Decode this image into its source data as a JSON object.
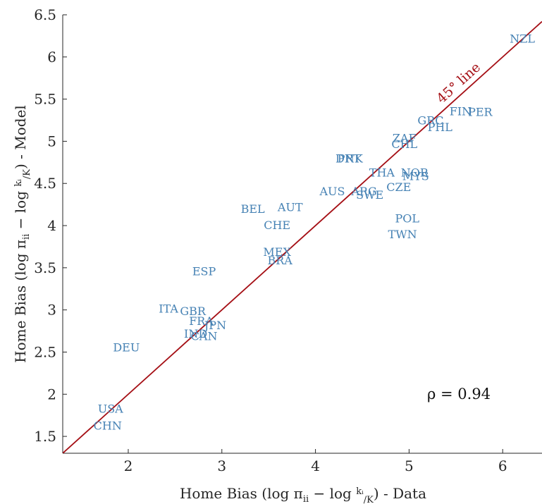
{
  "chart_data": {
    "type": "scatter",
    "title": "",
    "xlabel": "Home Bias (log πᵢᵢ − log kᵢ/K) - Data",
    "ylabel": "Home Bias (log πᵢᵢ − log kᵢ/K) - Model",
    "xlim": [
      1.3,
      6.42
    ],
    "ylim": [
      1.3,
      6.5
    ],
    "xticks": [
      "2",
      "3",
      "4",
      "5",
      "6"
    ],
    "yticks": [
      "1.5",
      "2",
      "2.5",
      "3",
      "3.5",
      "4",
      "4.5",
      "5",
      "5.5",
      "6",
      "6.5"
    ],
    "grid": false,
    "point_color": "#4682b4",
    "line_color": "#a50f15",
    "reference_line": {
      "label": "45° line",
      "slope": 1,
      "intercept": 0
    },
    "annotation": "ρ = 0.94",
    "points": [
      {
        "label": "NZL",
        "x": 6.21,
        "y": 6.22
      },
      {
        "label": "PER",
        "x": 5.76,
        "y": 5.35
      },
      {
        "label": "FIN",
        "x": 5.55,
        "y": 5.36
      },
      {
        "label": "GRC",
        "x": 5.23,
        "y": 5.25
      },
      {
        "label": "PHL",
        "x": 5.33,
        "y": 5.17
      },
      {
        "label": "ZAF",
        "x": 4.95,
        "y": 5.04
      },
      {
        "label": "CHL",
        "x": 4.95,
        "y": 4.97
      },
      {
        "label": "DNK",
        "x": 4.36,
        "y": 4.8
      },
      {
        "label": "PRT",
        "x": 4.36,
        "y": 4.8
      },
      {
        "label": "THA",
        "x": 4.71,
        "y": 4.63
      },
      {
        "label": "NOR",
        "x": 5.06,
        "y": 4.63
      },
      {
        "label": "MYS",
        "x": 5.07,
        "y": 4.59
      },
      {
        "label": "AUS",
        "x": 4.18,
        "y": 4.41
      },
      {
        "label": "ARG",
        "x": 4.52,
        "y": 4.41
      },
      {
        "label": "SWE",
        "x": 4.58,
        "y": 4.37
      },
      {
        "label": "CZE",
        "x": 4.89,
        "y": 4.46
      },
      {
        "label": "BEL",
        "x": 3.33,
        "y": 4.2
      },
      {
        "label": "AUT",
        "x": 3.73,
        "y": 4.22
      },
      {
        "label": "CHE",
        "x": 3.59,
        "y": 4.01
      },
      {
        "label": "POL",
        "x": 4.98,
        "y": 4.09
      },
      {
        "label": "TWN",
        "x": 4.93,
        "y": 3.9
      },
      {
        "label": "MEX",
        "x": 3.59,
        "y": 3.69
      },
      {
        "label": "BRA",
        "x": 3.62,
        "y": 3.59
      },
      {
        "label": "ESP",
        "x": 2.81,
        "y": 3.46
      },
      {
        "label": "ITA",
        "x": 2.43,
        "y": 3.02
      },
      {
        "label": "GBR",
        "x": 2.69,
        "y": 2.99
      },
      {
        "label": "FRA",
        "x": 2.78,
        "y": 2.87
      },
      {
        "label": "JPN",
        "x": 2.93,
        "y": 2.82
      },
      {
        "label": "IND",
        "x": 2.72,
        "y": 2.72
      },
      {
        "label": "CAN",
        "x": 2.81,
        "y": 2.69
      },
      {
        "label": "DEU",
        "x": 1.98,
        "y": 2.56
      },
      {
        "label": "USA",
        "x": 1.81,
        "y": 1.83
      },
      {
        "label": "CHN",
        "x": 1.78,
        "y": 1.63
      }
    ]
  }
}
